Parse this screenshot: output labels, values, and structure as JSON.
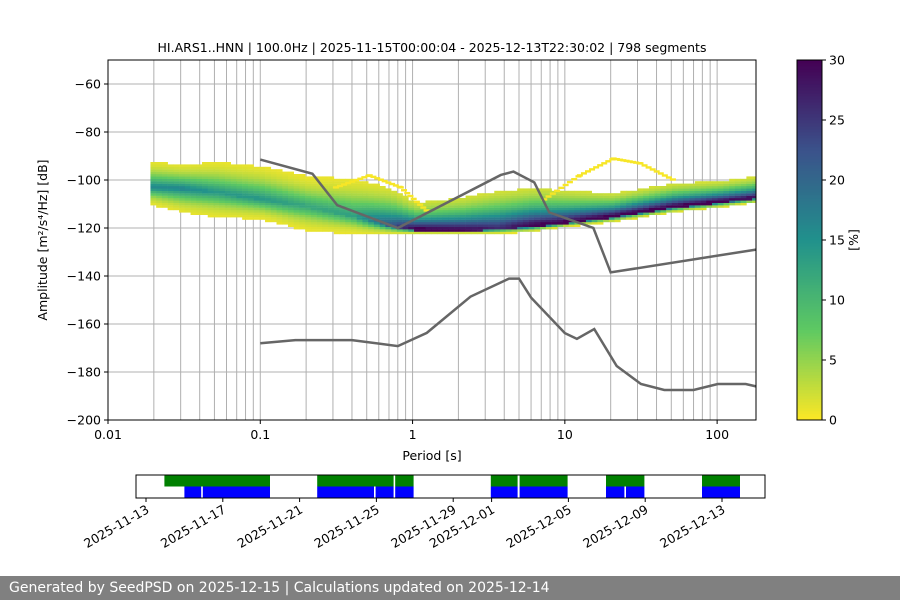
{
  "chart_data": [
    {
      "type": "heatmap",
      "title": "HI.ARS1..HNN | 100.0Hz | 2025-11-15T00:00:04 - 2025-12-13T22:30:02 | 798 segments",
      "xlabel": "Period [s]",
      "ylabel": "Amplitude [m²/s⁴/Hz] [dB]",
      "x_scale": "log",
      "xlim": [
        0.01,
        180
      ],
      "ylim": [
        -200,
        -50
      ],
      "x_ticks": [
        "0.01",
        "0.1",
        "1",
        "10",
        "100"
      ],
      "x_tick_values": [
        0.01,
        0.1,
        1,
        10,
        100
      ],
      "y_ticks": [
        "−60",
        "−80",
        "−100",
        "−120",
        "−140",
        "−160",
        "−180",
        "−200"
      ],
      "y_tick_values": [
        -60,
        -80,
        -100,
        -120,
        -140,
        -160,
        -180,
        -200
      ],
      "grid": true,
      "colorbar": {
        "label": "[%]",
        "range": [
          0,
          30
        ],
        "colormap": "viridis_r",
        "ticks": [
          "0",
          "5",
          "10",
          "15",
          "20",
          "25",
          "30"
        ],
        "tick_values": [
          0,
          5,
          10,
          15,
          20,
          25,
          30
        ]
      },
      "density_profile": {
        "columns": [
          "period_s",
          "mode_db",
          "upper_db",
          "lower_db",
          "peak_percent"
        ],
        "rows": [
          [
            0.019,
            -103,
            -93,
            -110,
            16
          ],
          [
            0.03,
            -103.5,
            -94,
            -113,
            16
          ],
          [
            0.05,
            -105,
            -93,
            -115,
            14
          ],
          [
            0.1,
            -108,
            -95,
            -116,
            14
          ],
          [
            0.2,
            -111,
            -99,
            -121,
            12
          ],
          [
            0.4,
            -115,
            -100,
            -122,
            13
          ],
          [
            0.7,
            -119,
            -104,
            -122,
            22
          ],
          [
            1,
            -120.5,
            -110,
            -122,
            30
          ],
          [
            2,
            -121,
            -108,
            -122,
            30
          ],
          [
            3.5,
            -120,
            -105,
            -122,
            26
          ],
          [
            6,
            -119,
            -104,
            -121,
            30
          ],
          [
            10,
            -117.5,
            -105,
            -119,
            30
          ],
          [
            20,
            -115,
            -106,
            -117,
            30
          ],
          [
            50,
            -111,
            -102,
            -113,
            30
          ],
          [
            100,
            -109,
            -101,
            -111,
            30
          ],
          [
            180,
            -107,
            -99,
            -109,
            28
          ]
        ]
      },
      "sparse_outliers": [
        [
          [
            0.3,
            -103
          ],
          [
            0.5,
            -98
          ],
          [
            0.8,
            -103
          ],
          [
            1.2,
            -113
          ]
        ],
        [
          [
            7,
            -108
          ],
          [
            12,
            -98
          ],
          [
            20,
            -91
          ],
          [
            30,
            -93
          ],
          [
            50,
            -100
          ]
        ]
      ],
      "series": [
        {
          "type": "line",
          "color": "#666666",
          "points": [
            [
              0.1,
              -91.5
            ],
            [
              0.22,
              -97.4
            ],
            [
              0.32,
              -110.5
            ],
            [
              0.8,
              -120
            ],
            [
              3.8,
              -97.9
            ],
            [
              4.6,
              -96.5
            ],
            [
              6.3,
              -101
            ],
            [
              7.9,
              -113.5
            ],
            [
              15.4,
              -120
            ],
            [
              20,
              -138.5
            ],
            [
              180,
              -129
            ]
          ]
        },
        {
          "type": "line",
          "color": "#666666",
          "points": [
            [
              0.1,
              -168
            ],
            [
              0.17,
              -166.7
            ],
            [
              0.4,
              -166.7
            ],
            [
              0.8,
              -169.2
            ],
            [
              1.24,
              -163.7
            ],
            [
              2.4,
              -148.6
            ],
            [
              4.3,
              -141.1
            ],
            [
              5,
              -141.1
            ],
            [
              6,
              -149
            ],
            [
              10,
              -163.8
            ],
            [
              12,
              -166.2
            ],
            [
              15.6,
              -162.1
            ],
            [
              21.9,
              -177.5
            ],
            [
              31.6,
              -185
            ],
            [
              45,
              -187.5
            ],
            [
              70,
              -187.5
            ],
            [
              101,
              -185
            ],
            [
              154,
              -185
            ],
            [
              180,
              -186
            ]
          ]
        }
      ]
    },
    {
      "type": "timeline",
      "x_ticks": [
        "2025-11-13",
        "2025-11-17",
        "2025-11-21",
        "2025-11-25",
        "2025-11-29",
        "2025-12-01",
        "2025-12-05",
        "2025-12-09",
        "2025-12-13"
      ],
      "x_tick_values": [
        "2025-11-13",
        "2025-11-17",
        "2025-11-21",
        "2025-11-25",
        "2025-11-29",
        "2025-12-01",
        "2025-12-05",
        "2025-12-09",
        "2025-12-13"
      ],
      "green_color": "#008000",
      "blue_color": "#0000ff",
      "green_intervals": [
        [
          "2025-11-13T23:00",
          "2025-11-19T11:00"
        ],
        [
          "2025-11-21T22:00",
          "2025-11-25T21:30"
        ],
        [
          "2025-11-25T23:30",
          "2025-11-26T22:30"
        ],
        [
          "2025-11-30T23:00",
          "2025-12-02T08:30"
        ],
        [
          "2025-12-02T11:00",
          "2025-12-04T23:00"
        ],
        [
          "2025-12-06T23:00",
          "2025-12-08T23:00"
        ],
        [
          "2025-12-11T23:00",
          "2025-12-13T22:30"
        ]
      ],
      "blue_intervals": [
        [
          "2025-11-15T00:00",
          "2025-11-15T21:00"
        ],
        [
          "2025-11-15T23:00",
          "2025-11-19T11:00"
        ],
        [
          "2025-11-21T22:00",
          "2025-11-24T21:00"
        ],
        [
          "2025-11-24T23:00",
          "2025-11-25T21:30"
        ],
        [
          "2025-11-25T23:30",
          "2025-11-26T22:30"
        ],
        [
          "2025-11-30T23:00",
          "2025-12-02T08:30"
        ],
        [
          "2025-12-02T11:00",
          "2025-12-04T23:00"
        ],
        [
          "2025-12-06T23:00",
          "2025-12-07T22:00"
        ],
        [
          "2025-12-08T00:00",
          "2025-12-08T23:00"
        ],
        [
          "2025-12-11T23:00",
          "2025-12-13T22:30"
        ]
      ]
    }
  ],
  "footer": {
    "text": "Generated by SeedPSD on 2025-12-15 | Calculations updated on 2025-12-14"
  }
}
